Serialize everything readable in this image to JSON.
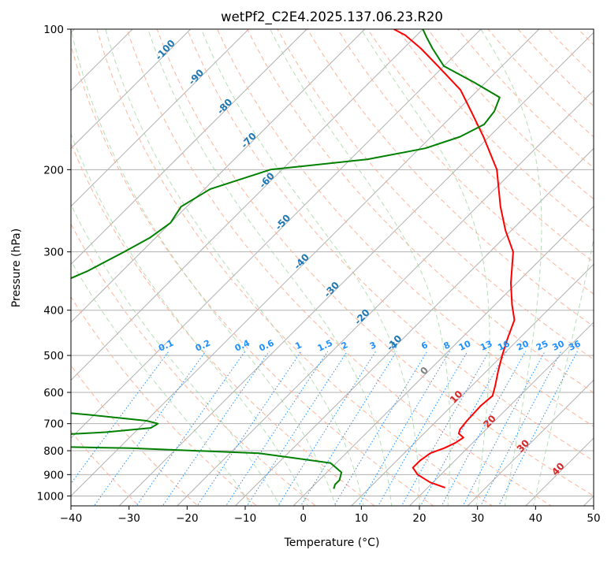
{
  "chart_data": {
    "type": "line",
    "title": "wetPf2_C2E4.2025.137.06.23.R20",
    "xlabel": "Temperature (°C)",
    "ylabel": "Pressure (hPa)",
    "xlim": [
      -40,
      50
    ],
    "ylim": [
      1050,
      100
    ],
    "y_scale": "log",
    "grid": true,
    "x_ticks": [
      -40,
      -30,
      -20,
      -10,
      0,
      10,
      20,
      30,
      40,
      50
    ],
    "y_ticks": [
      100,
      200,
      300,
      400,
      500,
      600,
      700,
      800,
      900,
      1000
    ],
    "skew": 35,
    "series": [
      {
        "role": "temperature",
        "color": "#ff0000",
        "points": [
          [
            23.0,
            960
          ],
          [
            19.5,
            935
          ],
          [
            16.0,
            900
          ],
          [
            14.0,
            870
          ],
          [
            14.0,
            840
          ],
          [
            14.5,
            810
          ],
          [
            16.0,
            790
          ],
          [
            17.0,
            770
          ],
          [
            17.5,
            750
          ],
          [
            16.0,
            735
          ],
          [
            15.5,
            720
          ],
          [
            15.2,
            690
          ],
          [
            15.0,
            640
          ],
          [
            15.3,
            610
          ],
          [
            14.0,
            580
          ],
          [
            12.0,
            540
          ],
          [
            10.0,
            500
          ],
          [
            8.0,
            460
          ],
          [
            6.0,
            420
          ],
          [
            3.0,
            390
          ],
          [
            -1.0,
            350
          ],
          [
            -6.0,
            300
          ],
          [
            -11.0,
            270
          ],
          [
            -16.0,
            240
          ],
          [
            -23.0,
            200
          ],
          [
            -31.0,
            170
          ],
          [
            -37.5,
            150
          ],
          [
            -43.0,
            135
          ],
          [
            -51.0,
            120
          ],
          [
            -57.0,
            110
          ],
          [
            -62.0,
            103
          ],
          [
            -65.0,
            100
          ]
        ]
      },
      {
        "role": "dewpoint",
        "color": "#008000",
        "points": [
          [
            4.0,
            965
          ],
          [
            3.5,
            945
          ],
          [
            3.5,
            925
          ],
          [
            2.5,
            890
          ],
          [
            -1.0,
            850
          ],
          [
            -15.0,
            810
          ],
          [
            -38.0,
            790
          ],
          [
            -62.0,
            780
          ],
          [
            -64.0,
            775
          ],
          [
            -50.0,
            770
          ],
          [
            -70.0,
            760
          ],
          [
            -45.0,
            730
          ],
          [
            -38.0,
            715
          ],
          [
            -37.5,
            700
          ],
          [
            -40.0,
            690
          ],
          [
            -51.0,
            670
          ],
          [
            -67.0,
            645
          ],
          [
            -72.0,
            625
          ],
          [
            -75.0,
            600
          ],
          [
            -77.0,
            560
          ],
          [
            -78.0,
            530
          ],
          [
            -78.0,
            500
          ],
          [
            -75.0,
            460
          ],
          [
            -73.5,
            440
          ],
          [
            -75.5,
            420
          ],
          [
            -77.5,
            400
          ],
          [
            -79.0,
            380
          ],
          [
            -80.0,
            360
          ],
          [
            -76.0,
            330
          ],
          [
            -73.0,
            300
          ],
          [
            -71.0,
            280
          ],
          [
            -70.0,
            260
          ],
          [
            -71.0,
            240
          ],
          [
            -69.0,
            220
          ],
          [
            -62.0,
            200
          ],
          [
            -47.0,
            190
          ],
          [
            -39.0,
            180
          ],
          [
            -35.0,
            170
          ],
          [
            -33.0,
            160
          ],
          [
            -33.5,
            150
          ],
          [
            -35.0,
            140
          ],
          [
            -42.0,
            130
          ],
          [
            -50.0,
            120
          ],
          [
            -55.0,
            110
          ],
          [
            -58.0,
            104
          ],
          [
            -60.0,
            100
          ]
        ]
      }
    ],
    "isotherm_labels": {
      "color": "#1f77b4",
      "items": [
        {
          "text": "-100",
          "T": -100,
          "p": 112
        },
        {
          "text": "-90",
          "T": -90,
          "p": 128
        },
        {
          "text": "-80",
          "T": -80,
          "p": 148
        },
        {
          "text": "-70",
          "T": -70,
          "p": 175
        },
        {
          "text": "-60",
          "T": -60,
          "p": 213
        },
        {
          "text": "-50",
          "T": -50,
          "p": 262
        },
        {
          "text": "-40",
          "T": -40,
          "p": 318
        },
        {
          "text": "-30",
          "T": -30,
          "p": 365
        },
        {
          "text": "-20",
          "T": -20,
          "p": 418
        },
        {
          "text": "-10",
          "T": -10,
          "p": 475
        }
      ]
    },
    "zero_isotherm_label": {
      "text": "0",
      "T": 0,
      "p": 545,
      "color": "#808080"
    },
    "warm_isotherm_labels": {
      "color": "#d62728",
      "items": [
        {
          "text": "10",
          "T": 10,
          "p": 620
        },
        {
          "text": "20",
          "T": 20,
          "p": 700
        },
        {
          "text": "30",
          "T": 30,
          "p": 790
        },
        {
          "text": "40",
          "T": 40,
          "p": 885
        }
      ]
    },
    "mixing_ratio_labels": {
      "color": "#1e90ff",
      "p": 490,
      "items": [
        {
          "text": "0.1",
          "w": 0.1
        },
        {
          "text": "0.2",
          "w": 0.2
        },
        {
          "text": "0.4",
          "w": 0.4
        },
        {
          "text": "0.6",
          "w": 0.6
        },
        {
          "text": "1",
          "w": 1
        },
        {
          "text": "1.5",
          "w": 1.5
        },
        {
          "text": "2",
          "w": 2
        },
        {
          "text": "3",
          "w": 3
        },
        {
          "text": "4",
          "w": 4
        },
        {
          "text": "6",
          "w": 6
        },
        {
          "text": "8",
          "w": 8
        },
        {
          "text": "10",
          "w": 10
        },
        {
          "text": "13",
          "w": 13
        },
        {
          "text": "16",
          "w": 16
        },
        {
          "text": "20",
          "w": 20
        },
        {
          "text": "25",
          "w": 25
        },
        {
          "text": "30",
          "w": 30
        },
        {
          "text": "36",
          "w": 36
        }
      ]
    }
  }
}
